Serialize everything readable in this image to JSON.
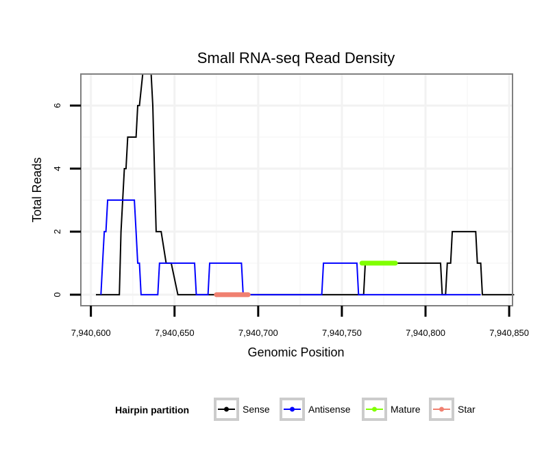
{
  "chart_data": {
    "type": "line",
    "title": "Small RNA-seq Read Density",
    "xlabel": "Genomic Position",
    "ylabel": "Total Reads",
    "xlim": [
      7940594,
      7940852
    ],
    "ylim": [
      -0.35,
      7.0
    ],
    "x_ticks": [
      7940600,
      7940650,
      7940700,
      7940750,
      7940800,
      7940850
    ],
    "x_tick_labels": [
      "7,940,600",
      "7,940,650",
      "7,940,700",
      "7,940,750",
      "7,940,800",
      "7,940,850"
    ],
    "y_ticks": [
      0,
      2,
      4,
      6
    ],
    "y_tick_labels": [
      "0",
      "2",
      "4",
      "6"
    ],
    "grid": true,
    "legend": {
      "title": "Hairpin partition",
      "position": "bottom"
    },
    "series": [
      {
        "name": "Sense",
        "color": "#000000",
        "x": [
          7940603,
          7940617,
          7940618,
          7940620,
          7940621,
          7940622,
          7940623,
          7940627,
          7940628,
          7940629,
          7940630,
          7940631,
          7940632,
          7940636,
          7940637,
          7940638,
          7940639,
          7940641,
          7940642,
          7940645,
          7940646,
          7940647,
          7940648,
          7940652,
          7940653,
          7940763,
          7940764,
          7940809,
          7940810,
          7940812,
          7940813,
          7940815,
          7940816,
          7940830,
          7940831,
          7940833,
          7940834,
          7940853
        ],
        "y": [
          0,
          0,
          2,
          4,
          4,
          5,
          5,
          5,
          6,
          6,
          6.5,
          7,
          7,
          7,
          6,
          4,
          2,
          2,
          2,
          1,
          1,
          1,
          1,
          0,
          0,
          0,
          1,
          1,
          0,
          0,
          1,
          1,
          2,
          2,
          1,
          1,
          0,
          0
        ]
      },
      {
        "name": "Antisense",
        "color": "#0000ff",
        "x": [
          7940606,
          7940607,
          7940608,
          7940609,
          7940610,
          7940626,
          7940627,
          7940628,
          7940629,
          7940630,
          7940640,
          7940641,
          7940662,
          7940663,
          7940670,
          7940671,
          7940690,
          7940691,
          7940738,
          7940739,
          7940759,
          7940760,
          7940833
        ],
        "y": [
          0,
          1,
          2,
          2,
          3,
          3,
          2,
          1,
          1,
          0,
          0,
          1,
          1,
          0,
          0,
          1,
          1,
          0,
          0,
          1,
          1,
          0,
          0
        ]
      },
      {
        "name": "Mature",
        "color": "#80ff00",
        "x": [
          7940762,
          7940782
        ],
        "y": [
          1,
          1
        ]
      },
      {
        "name": "Star",
        "color": "#f08070",
        "x": [
          7940675,
          7940694
        ],
        "y": [
          0,
          0
        ]
      }
    ]
  }
}
